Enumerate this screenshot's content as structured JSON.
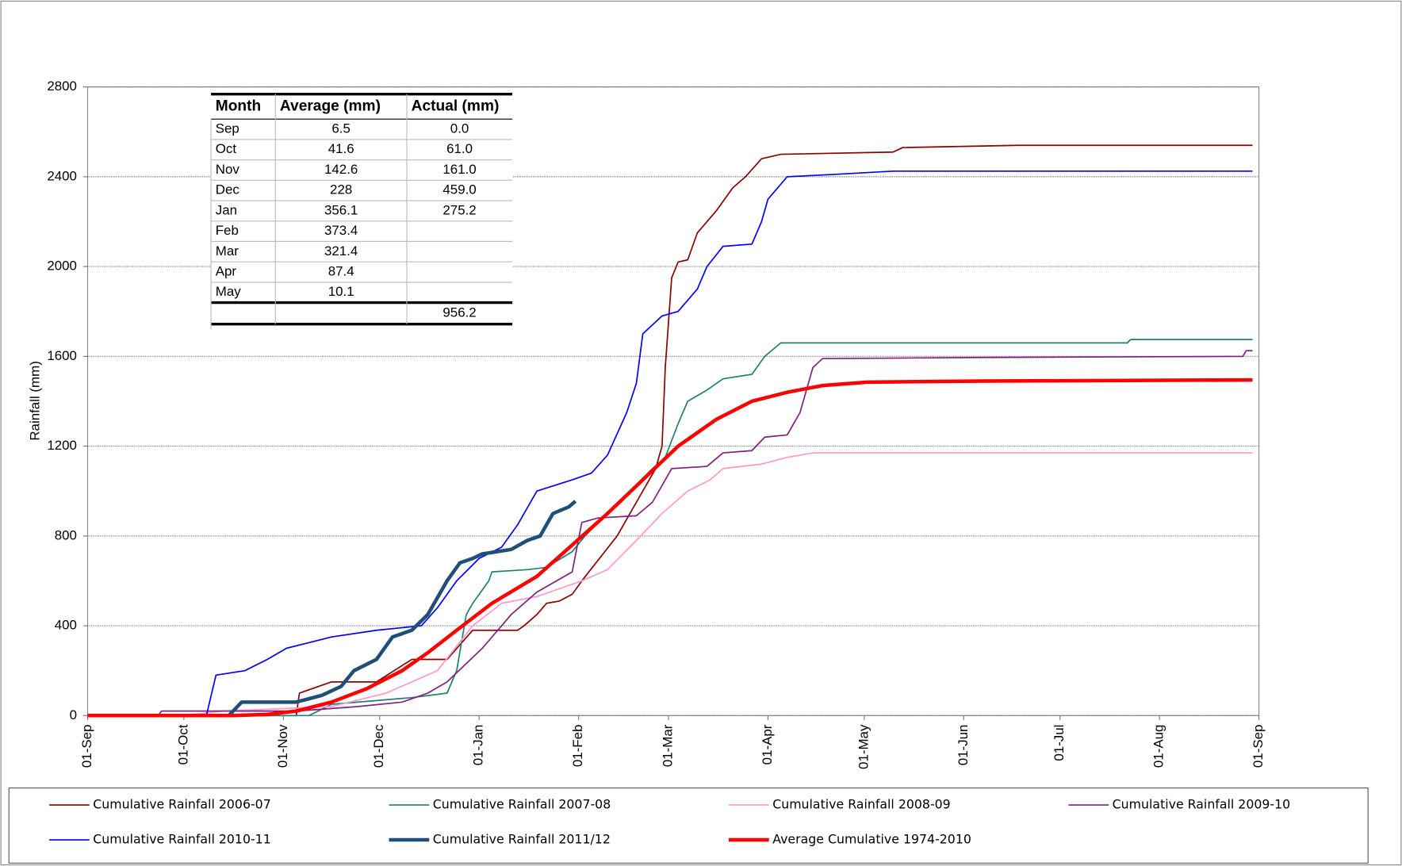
{
  "chart_data": {
    "type": "line",
    "y_label": "Rainfall (mm)",
    "xlim": [
      0,
      365
    ],
    "xticks": [
      {
        "value": 0,
        "label": "01-Sep"
      },
      {
        "value": 30,
        "label": "01-Oct"
      },
      {
        "value": 61,
        "label": "01-Nov"
      },
      {
        "value": 91,
        "label": "01-Dec"
      },
      {
        "value": 122,
        "label": "01-Jan"
      },
      {
        "value": 153,
        "label": "01-Feb"
      },
      {
        "value": 181,
        "label": "01-Mar"
      },
      {
        "value": 212,
        "label": "01-Apr"
      },
      {
        "value": 242,
        "label": "01-May"
      },
      {
        "value": 273,
        "label": "01-Jun"
      },
      {
        "value": 303,
        "label": "01-Jul"
      },
      {
        "value": 334,
        "label": "01-Aug"
      },
      {
        "value": 365,
        "label": "01-Sep"
      }
    ],
    "ylim": [
      0,
      2800
    ],
    "yticks": [
      0,
      400,
      800,
      1200,
      1600,
      2000,
      2400,
      2800
    ],
    "grid": true,
    "series": [
      {
        "name": "Cumulative Rainfall 2006-07",
        "color": "#8b0000",
        "line_width": 1.5,
        "x": [
          0,
          65,
          66,
          76,
          90,
          101,
          112,
          120,
          134,
          136,
          140,
          143,
          147,
          151,
          154,
          165,
          173,
          177,
          179,
          180,
          182,
          184,
          187,
          190,
          196,
          201,
          205,
          210,
          216,
          251,
          254,
          290,
          363
        ],
        "values": [
          0,
          0,
          100,
          150,
          150,
          250,
          250,
          380,
          380,
          400,
          450,
          500,
          510,
          540,
          600,
          800,
          1000,
          1100,
          1200,
          1550,
          1950,
          2020,
          2030,
          2150,
          2250,
          2350,
          2400,
          2480,
          2500,
          2510,
          2530,
          2540,
          2540
        ]
      },
      {
        "name": "Cumulative Rainfall 2007-08",
        "color": "#1f7f74",
        "line_width": 1.5,
        "x": [
          0,
          69,
          76,
          101,
          112,
          115,
          118,
          120,
          125,
          126,
          137,
          143,
          151,
          155,
          162,
          176,
          180,
          184,
          187,
          193,
          198,
          207,
          211,
          216,
          324,
          325,
          363
        ],
        "values": [
          0,
          0,
          50,
          80,
          100,
          200,
          450,
          500,
          600,
          640,
          650,
          660,
          730,
          800,
          900,
          1100,
          1150,
          1300,
          1400,
          1450,
          1500,
          1520,
          1600,
          1660,
          1660,
          1675,
          1675
        ]
      },
      {
        "name": "Cumulative Rainfall 2008-09",
        "color": "#ff99cc",
        "line_width": 1.5,
        "x": [
          0,
          30,
          42,
          76,
          93,
          101,
          109,
          120,
          129,
          140,
          154,
          162,
          171,
          179,
          187,
          194,
          198,
          210,
          218,
          226,
          363
        ],
        "values": [
          0,
          0,
          20,
          40,
          100,
          150,
          200,
          400,
          500,
          530,
          600,
          650,
          780,
          900,
          1000,
          1050,
          1100,
          1120,
          1150,
          1170,
          1170
        ]
      },
      {
        "name": "Cumulative Rainfall 2009-10",
        "color": "#7f1f7f",
        "line_width": 1.5,
        "x": [
          0,
          22,
          23,
          65,
          84,
          98,
          106,
          112,
          123,
          132,
          140,
          151,
          154,
          159,
          171,
          176,
          182,
          193,
          198,
          207,
          211,
          218,
          222,
          226,
          229,
          279,
          360,
          361,
          363
        ],
        "values": [
          0,
          0,
          20,
          20,
          40,
          60,
          100,
          150,
          300,
          450,
          550,
          640,
          860,
          880,
          890,
          950,
          1100,
          1110,
          1170,
          1180,
          1240,
          1250,
          1350,
          1550,
          1590,
          1595,
          1600,
          1625,
          1625
        ]
      },
      {
        "name": "Cumulative Rainfall 2010-11",
        "color": "#0000ff",
        "line_width": 1.5,
        "x": [
          0,
          37,
          40,
          49,
          56,
          62,
          76,
          90,
          104,
          109,
          115,
          122,
          129,
          134,
          140,
          151,
          157,
          162,
          168,
          171,
          173,
          179,
          184,
          190,
          193,
          198,
          207,
          210,
          212,
          218,
          232,
          251,
          363
        ],
        "values": [
          0,
          0,
          180,
          200,
          250,
          300,
          350,
          380,
          400,
          480,
          600,
          700,
          750,
          850,
          1000,
          1050,
          1080,
          1160,
          1350,
          1480,
          1700,
          1780,
          1800,
          1900,
          2000,
          2090,
          2100,
          2200,
          2300,
          2400,
          2410,
          2425,
          2425
        ]
      },
      {
        "name": "Cumulative Rainfall 2011/12",
        "color": "#1f4e79",
        "line_width": 4,
        "x": [
          0,
          44,
          48,
          65,
          73,
          79,
          83,
          90,
          95,
          101,
          106,
          112,
          116,
          120,
          123,
          132,
          137,
          141,
          145,
          150,
          152
        ],
        "values": [
          0,
          0,
          60,
          60,
          90,
          130,
          200,
          250,
          350,
          380,
          450,
          600,
          680,
          700,
          720,
          740,
          780,
          800,
          900,
          930,
          955
        ]
      },
      {
        "name": "Average Cumulative 1974-2010",
        "color": "#ff0000",
        "line_width": 4,
        "x": [
          0,
          45,
          56,
          65,
          76,
          87,
          98,
          106,
          115,
          126,
          140,
          151,
          162,
          173,
          184,
          196,
          207,
          218,
          229,
          243,
          279,
          363
        ],
        "values": [
          0,
          0,
          5,
          20,
          60,
          120,
          200,
          280,
          380,
          500,
          620,
          760,
          900,
          1050,
          1200,
          1320,
          1400,
          1440,
          1470,
          1485,
          1490,
          1495
        ]
      }
    ]
  },
  "table": {
    "columns": [
      "Month",
      "Average (mm)",
      "Actual (mm)"
    ],
    "rows": [
      [
        "Sep",
        "6.5",
        "0.0"
      ],
      [
        "Oct",
        "41.6",
        "61.0"
      ],
      [
        "Nov",
        "142.6",
        "161.0"
      ],
      [
        "Dec",
        "228",
        "459.0"
      ],
      [
        "Jan",
        "356.1",
        "275.2"
      ],
      [
        "Feb",
        "373.4",
        ""
      ],
      [
        "Mar",
        "321.4",
        ""
      ],
      [
        "Apr",
        "87.4",
        ""
      ],
      [
        "May",
        "10.1",
        ""
      ]
    ],
    "total": "956.2"
  }
}
